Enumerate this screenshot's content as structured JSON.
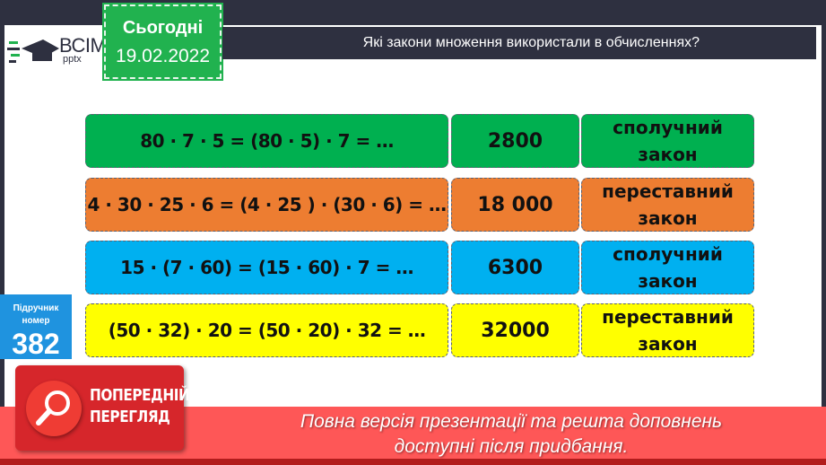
{
  "header": {
    "logo_text": "ВСІМ",
    "logo_sub": "pptx",
    "date_label": "Сьогодні",
    "date": "19.02.2022",
    "title": "Які закони множення використали в обчисленнях?"
  },
  "rows": [
    {
      "expression": "80 · 7 · 5 = (80 · 5) · 7 = …",
      "result": "2800",
      "law_1": "сполучний",
      "law_2": "закон",
      "color": "#00b050"
    },
    {
      "expression": "4 · 30 · 25 · 6 = (4 · 25 ) · (30 · 6) = …",
      "result": "18 000",
      "law_1": "переставний",
      "law_2": "закон",
      "color": "#ed7d31"
    },
    {
      "expression": "15 · (7 · 60) = (15 · 60) · 7 = …",
      "result": "6300",
      "law_1": "сполучний",
      "law_2": "закон",
      "color": "#00b0f0"
    },
    {
      "expression": "(50 · 32) · 20 = (50 · 20) · 32 = …",
      "result": "32000",
      "law_1": "переставний",
      "law_2": "закон",
      "color": "#ffff00"
    }
  ],
  "textbook": {
    "label_1": "Підручник",
    "label_2": "номер",
    "number": "382"
  },
  "preview": {
    "line_1": "ПОПЕРЕДНІЙ",
    "line_2": "ПЕРЕГЛЯД",
    "icon": "magnifier-icon"
  },
  "banner": {
    "line_1": "Повна версія презентації та решта доповнень",
    "line_2": "доступні після придбання."
  }
}
